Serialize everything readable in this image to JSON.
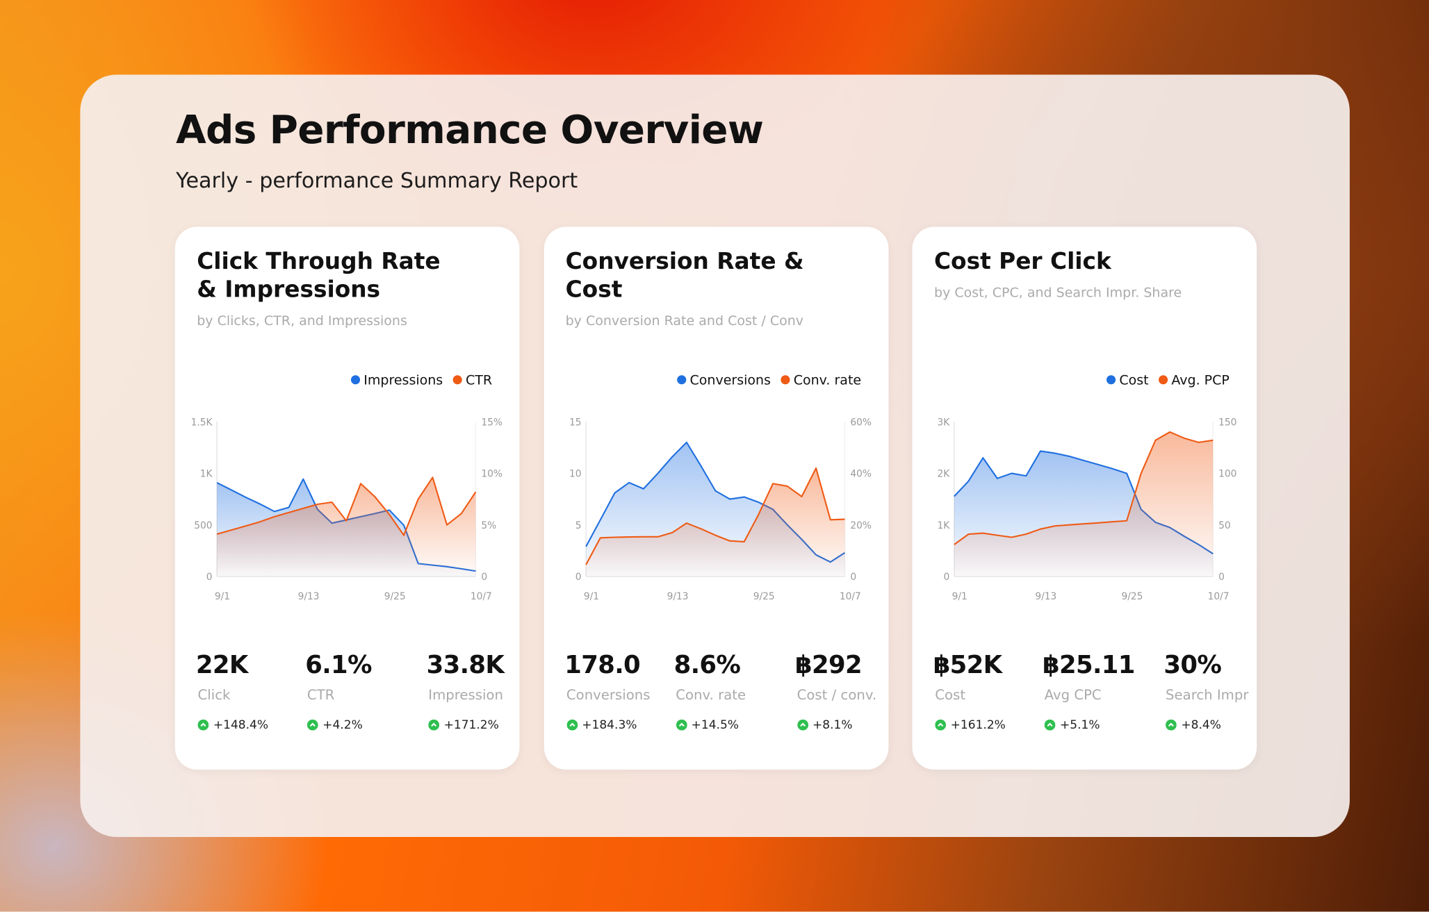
{
  "header": {
    "title": "Ads Performance Overview",
    "subtitle": "Yearly - performance Summary Report"
  },
  "chart_data": [
    {
      "type": "line",
      "title": "Click Through Rate & Impressions",
      "subtitle": "by Clicks, CTR, and Impressions",
      "categories": [
        "9/1",
        null,
        null,
        null,
        null,
        null,
        "9/13",
        null,
        null,
        null,
        null,
        null,
        "9/25",
        null,
        null,
        null,
        null,
        null,
        "10/7"
      ],
      "series": [
        {
          "name": "Impressions",
          "color": "#1f6fe0",
          "values": [
            909,
            839,
            768,
            702,
            630,
            670,
            944,
            650,
            517,
            548,
            580,
            611,
            643,
            497,
            125,
            110,
            95,
            75,
            53
          ]
        },
        {
          "name": "CTR",
          "color": "#ef5a14",
          "axis": "y2",
          "values": [
            4.1,
            4.5,
            4.9,
            5.3,
            5.8,
            6.2,
            6.6,
            7.0,
            7.2,
            5.4,
            9.0,
            7.7,
            6.0,
            4.0,
            7.5,
            9.6,
            5.0,
            6.1,
            8.2
          ]
        }
      ],
      "ylim": [
        0,
        1500
      ],
      "yticks": [
        0,
        500,
        {
          "value": 1000,
          "label": "1K"
        },
        {
          "value": 1500,
          "label": "1.5K"
        }
      ],
      "y2lim": [
        0,
        15
      ],
      "y2ticks": [
        0,
        {
          "value": 5,
          "label": "5%"
        },
        {
          "value": 10,
          "label": "10%"
        },
        {
          "value": 15,
          "label": "15%"
        }
      ],
      "legend": "top-right",
      "stats": [
        {
          "value": "22K",
          "label": "Click",
          "change": "+148.4%"
        },
        {
          "value": "6.1%",
          "label": "CTR",
          "change": "+4.2%"
        },
        {
          "value": "33.8K",
          "label": "Impression",
          "change": "+171.2%"
        }
      ]
    },
    {
      "type": "line",
      "title": "Conversion Rate & Cost",
      "subtitle": "by Conversion Rate and Cost / Conv",
      "categories": [
        "9/1",
        null,
        null,
        null,
        null,
        null,
        "9/13",
        null,
        null,
        null,
        null,
        null,
        "9/25",
        null,
        null,
        null,
        null,
        null,
        "10/7"
      ],
      "series": [
        {
          "name": "Conversions",
          "color": "#1f6fe0",
          "values": [
            2.9,
            5.5,
            8.1,
            9.1,
            8.5,
            10.0,
            11.6,
            13.0,
            10.7,
            8.3,
            7.5,
            7.7,
            7.2,
            6.5,
            5.0,
            3.6,
            2.1,
            1.4,
            2.3
          ]
        },
        {
          "name": "Conv. rate",
          "color": "#ef5a14",
          "axis": "y2",
          "values": [
            4.6,
            15,
            15.2,
            15.3,
            15.4,
            15.4,
            17,
            20.7,
            18.5,
            16,
            13.8,
            13.5,
            24,
            36,
            35,
            31,
            42,
            22,
            22.2
          ]
        }
      ],
      "ylim": [
        0,
        15
      ],
      "yticks": [
        0,
        5,
        10,
        15
      ],
      "y2lim": [
        0,
        60
      ],
      "y2ticks": [
        0,
        {
          "value": 20,
          "label": "20%"
        },
        {
          "value": 40,
          "label": "40%"
        },
        {
          "value": 60,
          "label": "60%"
        }
      ],
      "legend": "top-right",
      "stats": [
        {
          "value": "178.0",
          "label": "Conversions",
          "change": "+184.3%"
        },
        {
          "value": "8.6%",
          "label": "Conv. rate",
          "change": "+14.5%"
        },
        {
          "value": "฿292",
          "label": "Cost / conv.",
          "change": "+8.1%"
        }
      ]
    },
    {
      "type": "line",
      "title": "Cost Per Click",
      "subtitle": "by Cost, CPC, and Search Impr. Share",
      "categories": [
        "9/1",
        null,
        null,
        null,
        null,
        null,
        "9/13",
        null,
        null,
        null,
        null,
        null,
        "9/25",
        null,
        null,
        null,
        null,
        null,
        "10/7"
      ],
      "series": [
        {
          "name": "Cost",
          "color": "#1f6fe0",
          "values": [
            1553,
            1850,
            2300,
            1900,
            2000,
            1950,
            2430,
            2390,
            2330,
            2250,
            2170,
            2090,
            2000,
            1300,
            1050,
            950,
            780,
            620,
            441
          ]
        },
        {
          "name": "Avg. PCP",
          "color": "#ef5a14",
          "axis": "y2",
          "values": [
            31,
            41,
            42,
            40,
            38,
            41,
            46,
            49,
            50,
            51,
            52,
            53,
            54,
            100,
            132,
            140,
            134,
            130,
            132
          ]
        }
      ],
      "ylim": [
        0,
        3000
      ],
      "yticks": [
        0,
        {
          "value": 1000,
          "label": "1K"
        },
        {
          "value": 2000,
          "label": "2K"
        },
        {
          "value": 3000,
          "label": "3K"
        }
      ],
      "y2lim": [
        0,
        150
      ],
      "y2ticks": [
        0,
        50,
        100,
        150
      ],
      "legend": "top-right",
      "stats": [
        {
          "value": "฿52K",
          "label": "Cost",
          "change": "+161.2%"
        },
        {
          "value": "฿25.11",
          "label": "Avg CPC",
          "change": "+5.1%"
        },
        {
          "value": "30%",
          "label": "Search Impr",
          "change": "+8.4%"
        }
      ]
    }
  ]
}
